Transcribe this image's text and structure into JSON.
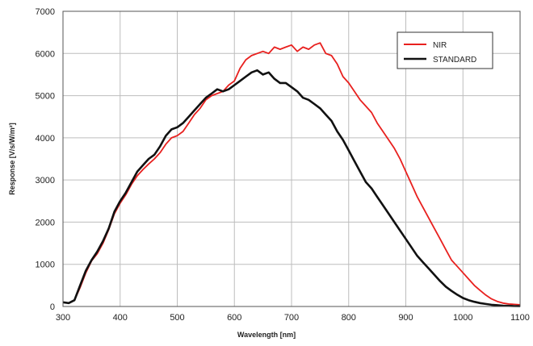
{
  "chart_data": {
    "type": "line",
    "title": "",
    "xlabel": "Wavelength [nm]",
    "ylabel": "Response [V/s/W/m²]",
    "xlim": [
      300,
      1100
    ],
    "ylim": [
      0,
      7000
    ],
    "xticks": [
      300,
      400,
      500,
      600,
      700,
      800,
      900,
      1000,
      1100
    ],
    "yticks": [
      0,
      1000,
      2000,
      3000,
      4000,
      5000,
      6000,
      7000
    ],
    "xtick_labels": [
      "300",
      "400",
      "500",
      "600",
      "700",
      "800",
      "900",
      "1000",
      "1100"
    ],
    "ytick_labels": [
      "0",
      "1000",
      "2000",
      "3000",
      "4000",
      "5000",
      "6000",
      "7000"
    ],
    "grid": true,
    "legend_position": "top-right",
    "series": [
      {
        "name": "NIR",
        "color": "#e8201e",
        "x": [
          300,
          310,
          320,
          330,
          340,
          350,
          360,
          370,
          380,
          390,
          400,
          410,
          420,
          430,
          440,
          450,
          460,
          470,
          480,
          490,
          500,
          510,
          520,
          530,
          540,
          550,
          560,
          570,
          580,
          590,
          600,
          610,
          620,
          630,
          640,
          650,
          660,
          670,
          680,
          690,
          700,
          710,
          720,
          730,
          740,
          750,
          760,
          770,
          780,
          790,
          800,
          810,
          820,
          830,
          840,
          850,
          860,
          870,
          880,
          890,
          900,
          910,
          920,
          930,
          940,
          950,
          960,
          970,
          980,
          990,
          1000,
          1010,
          1020,
          1030,
          1040,
          1050,
          1060,
          1070,
          1080,
          1090,
          1100
        ],
        "values": [
          100,
          80,
          150,
          450,
          800,
          1080,
          1250,
          1500,
          1820,
          2200,
          2450,
          2650,
          2900,
          3100,
          3250,
          3380,
          3500,
          3650,
          3850,
          4000,
          4050,
          4150,
          4350,
          4550,
          4700,
          4900,
          5000,
          5050,
          5100,
          5250,
          5350,
          5650,
          5850,
          5950,
          6000,
          6050,
          6000,
          6150,
          6100,
          6150,
          6200,
          6050,
          6150,
          6100,
          6200,
          6250,
          6000,
          5950,
          5750,
          5450,
          5300,
          5100,
          4900,
          4750,
          4600,
          4350,
          4150,
          3950,
          3750,
          3500,
          3200,
          2900,
          2600,
          2350,
          2100,
          1850,
          1600,
          1350,
          1100,
          950,
          800,
          650,
          500,
          380,
          270,
          180,
          120,
          80,
          60,
          50,
          40
        ]
      },
      {
        "name": "STANDARD",
        "color": "#111111",
        "x": [
          300,
          310,
          320,
          330,
          340,
          350,
          360,
          370,
          380,
          390,
          400,
          410,
          420,
          430,
          440,
          450,
          460,
          470,
          480,
          490,
          500,
          510,
          520,
          530,
          540,
          550,
          560,
          570,
          580,
          590,
          600,
          610,
          620,
          630,
          640,
          650,
          660,
          670,
          680,
          690,
          700,
          710,
          720,
          730,
          740,
          750,
          760,
          770,
          780,
          790,
          800,
          810,
          820,
          830,
          840,
          850,
          860,
          870,
          880,
          890,
          900,
          910,
          920,
          930,
          940,
          950,
          960,
          970,
          980,
          990,
          1000,
          1010,
          1020,
          1030,
          1040,
          1050,
          1060,
          1070,
          1080,
          1090,
          1100
        ],
        "values": [
          100,
          80,
          150,
          500,
          850,
          1100,
          1300,
          1550,
          1850,
          2250,
          2500,
          2700,
          2950,
          3200,
          3350,
          3500,
          3600,
          3800,
          4050,
          4200,
          4250,
          4350,
          4500,
          4650,
          4800,
          4950,
          5050,
          5150,
          5100,
          5150,
          5250,
          5350,
          5450,
          5550,
          5600,
          5500,
          5550,
          5400,
          5300,
          5300,
          5200,
          5100,
          4950,
          4900,
          4800,
          4700,
          4550,
          4400,
          4150,
          3950,
          3700,
          3450,
          3200,
          2950,
          2800,
          2600,
          2400,
          2200,
          2000,
          1800,
          1600,
          1400,
          1200,
          1050,
          900,
          750,
          600,
          470,
          370,
          280,
          200,
          150,
          110,
          80,
          60,
          40,
          30,
          20,
          15,
          10,
          8
        ]
      }
    ]
  }
}
